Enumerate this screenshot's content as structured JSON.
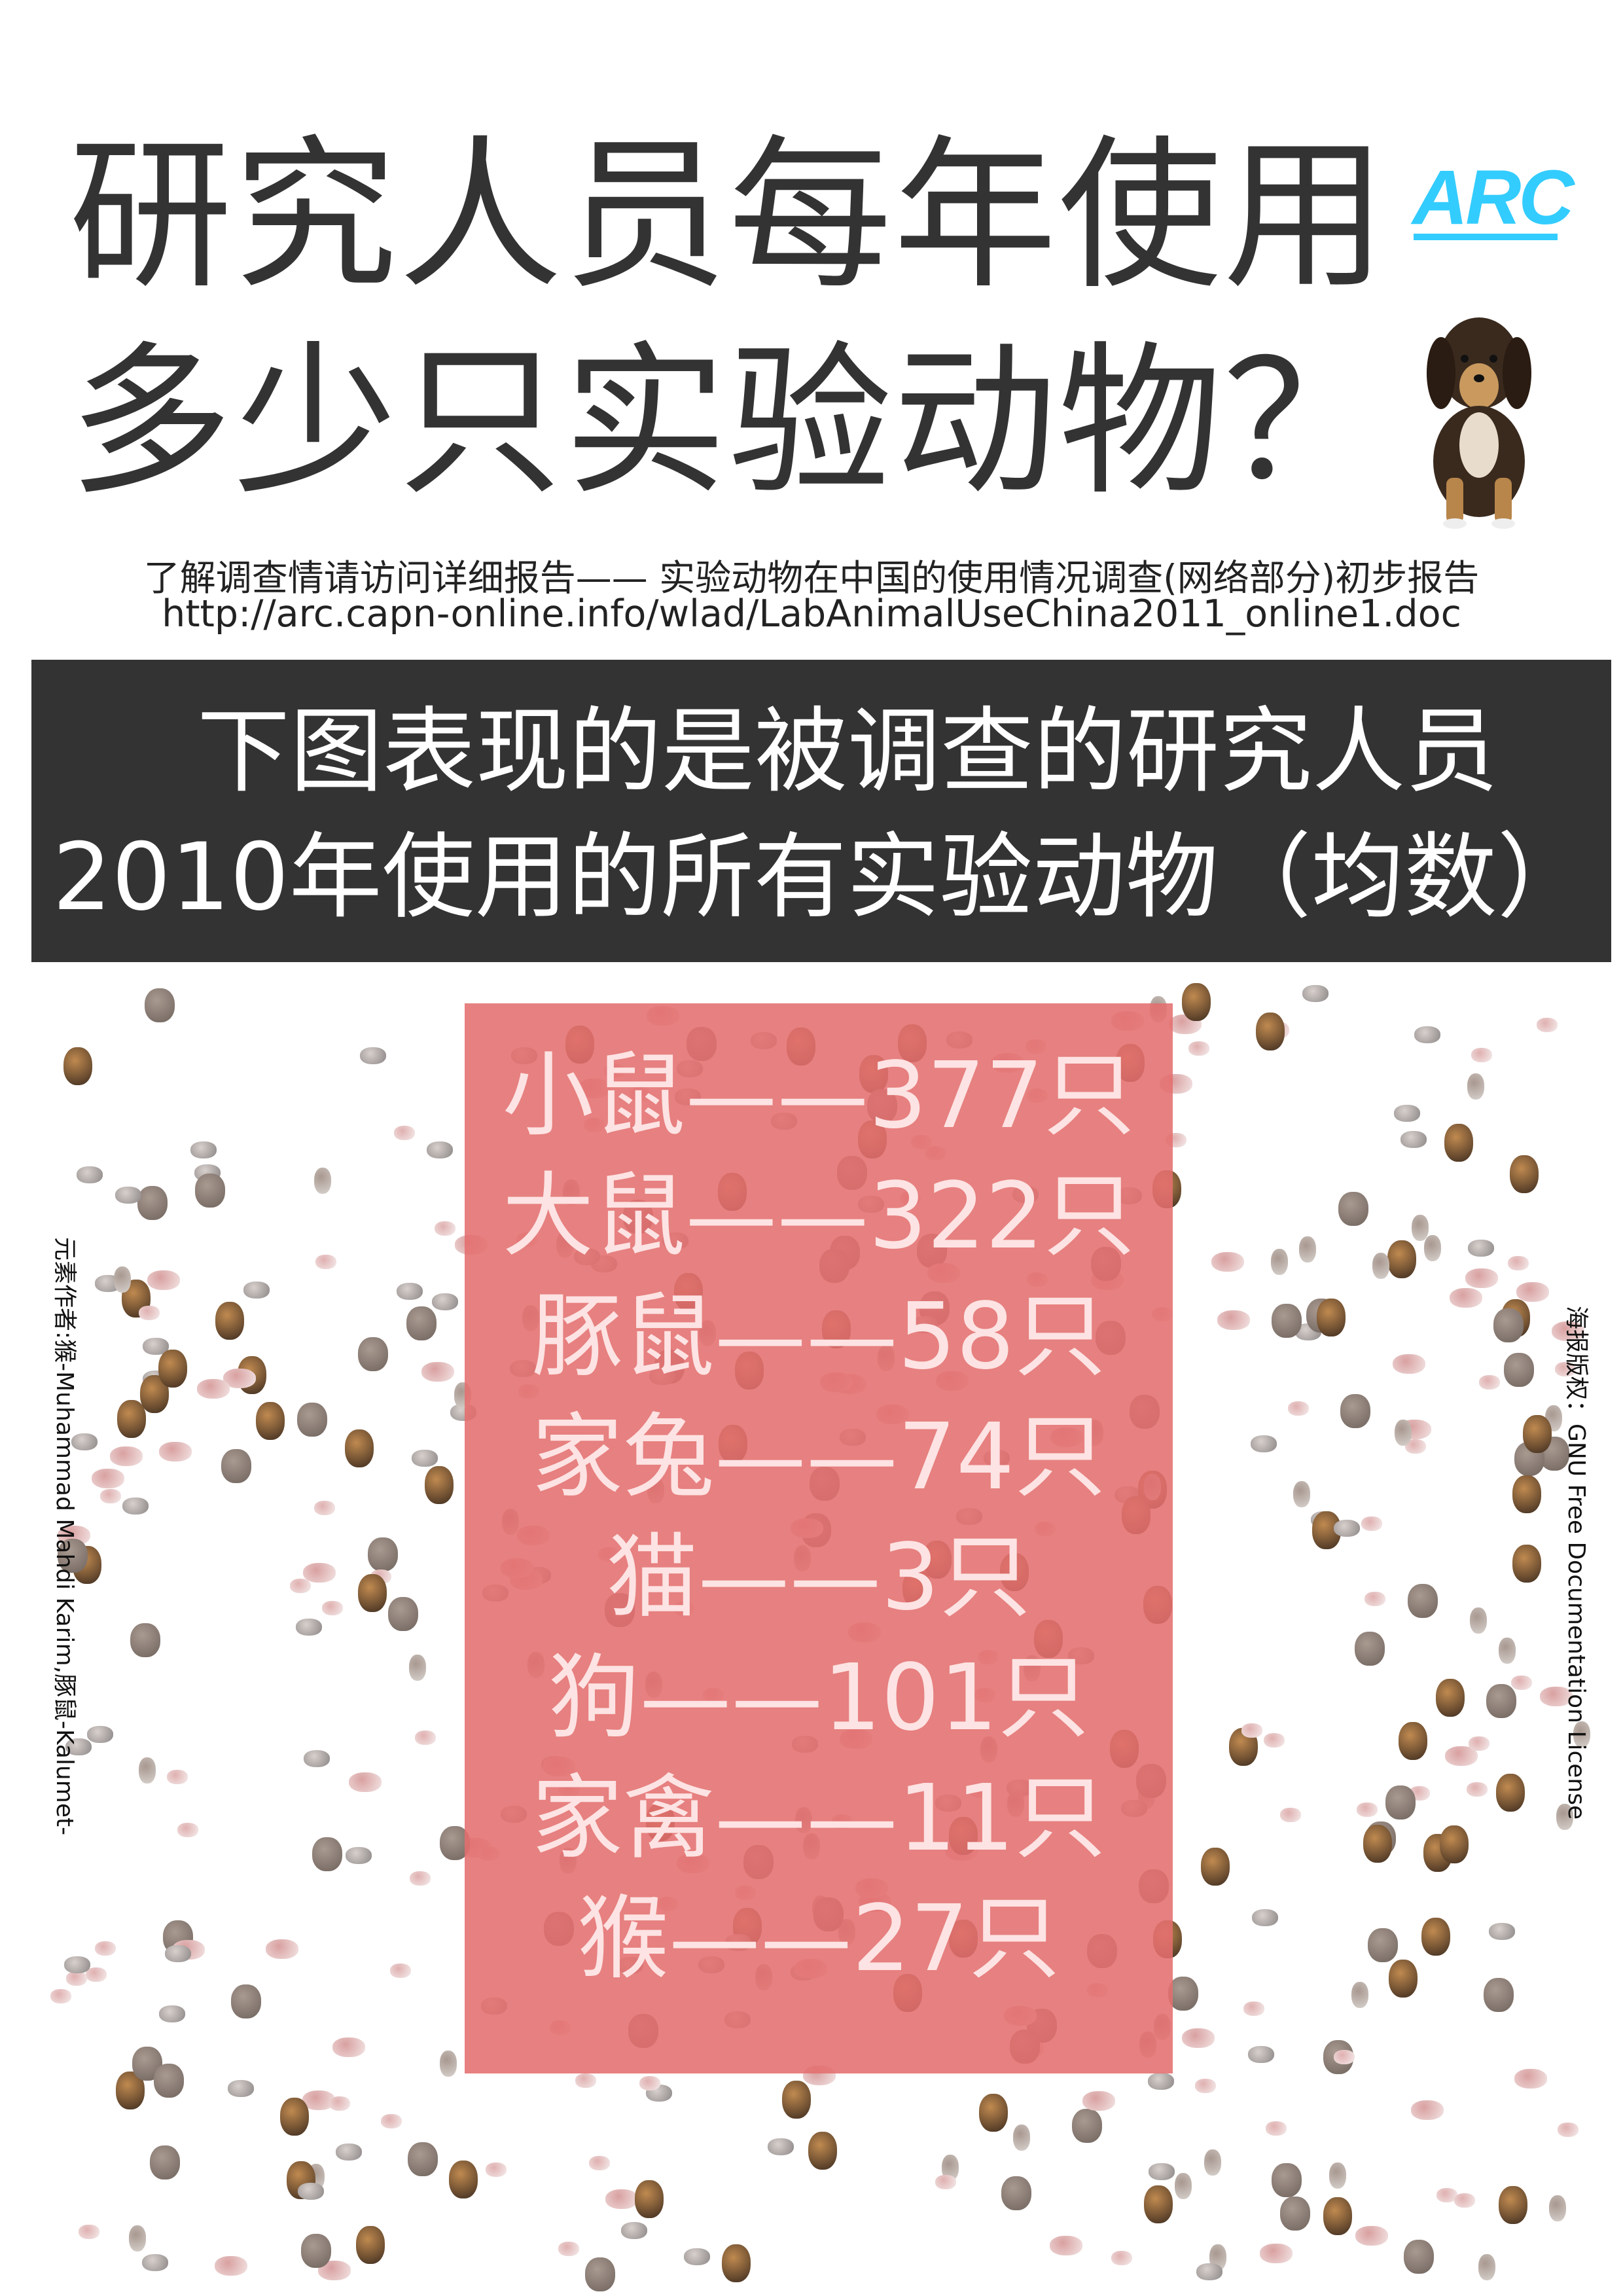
{
  "header": {
    "title_line1": "研究人员每年使用",
    "title_line2": "多少只实验动物？",
    "logo": "ARC",
    "logo_color": "#33ccff"
  },
  "report": {
    "line1": "了解调查情请访问详细报告—— 实验动物在中国的使用情况调查(网络部分)初步报告",
    "url": "http://arc.capn-online.info/wlad/LabAnimalUseChina2011_online1.doc"
  },
  "banner": {
    "line1": "下图表现的是被调查的研究人员",
    "line2": "2010年使用的所有实验动物（均数）",
    "background": "#333333"
  },
  "animals": [
    {
      "label": "小鼠——377只",
      "animal": "小鼠",
      "count": 377
    },
    {
      "label": "大鼠——322只",
      "animal": "大鼠",
      "count": 322
    },
    {
      "label": "豚鼠——58只",
      "animal": "豚鼠",
      "count": 58
    },
    {
      "label": "家兔——74只",
      "animal": "家兔",
      "count": 74
    },
    {
      "label": "猫——3只",
      "animal": "猫",
      "count": 3
    },
    {
      "label": "狗——101只",
      "animal": "狗",
      "count": 101
    },
    {
      "label": "家禽——11只",
      "animal": "家禽",
      "count": 11
    },
    {
      "label": "猴——27只",
      "animal": "猴",
      "count": 27
    }
  ],
  "highlight_color": "#e46e6e",
  "credits": {
    "elements": "元素作者:猴-Muhammad Mahdi Karim,豚鼠-Kalumet-",
    "license": "海报版权：GNU Free Documentation License"
  }
}
